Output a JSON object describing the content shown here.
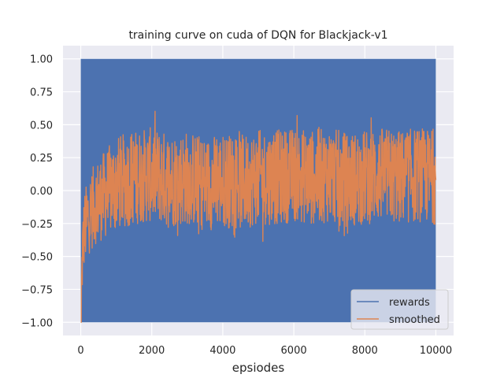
{
  "chart_data": {
    "type": "line",
    "title": "training curve on cuda of DQN for Blackjack-v1",
    "xlabel": "epsiodes",
    "ylabel": "",
    "xlim": [
      -500,
      10500
    ],
    "ylim": [
      -1.1,
      1.1
    ],
    "x_ticks": [
      0,
      2000,
      4000,
      6000,
      8000,
      10000
    ],
    "y_ticks": [
      -1.0,
      -0.75,
      -0.5,
      -0.25,
      0.0,
      0.25,
      0.5,
      0.75,
      1.0
    ],
    "x_tick_labels": [
      "0",
      "2000",
      "4000",
      "6000",
      "8000",
      "10000"
    ],
    "y_tick_labels": [
      "−1.00",
      "−0.75",
      "−0.50",
      "−0.25",
      "0.00",
      "0.25",
      "0.50",
      "0.75",
      "1.00"
    ],
    "grid": true,
    "legend_position": "bottom-right",
    "series": [
      {
        "name": "rewards",
        "color": "#4c72b0",
        "description_values": "episode rewards oscillating between -1 and 1 over 10000 episodes",
        "x_range": [
          0,
          10000
        ],
        "y_range": [
          -1.0,
          1.0
        ]
      },
      {
        "name": "smoothed",
        "color": "#dd8452",
        "x": [
          0,
          50,
          100,
          200,
          400,
          600,
          800,
          1000,
          1500,
          2000,
          2500,
          3000,
          3500,
          4000,
          4500,
          5000,
          5500,
          6000,
          6500,
          7000,
          7500,
          8000,
          8500,
          9000,
          9500,
          10000
        ],
        "values": [
          -1.0,
          -0.45,
          -0.3,
          -0.2,
          -0.1,
          -0.05,
          0.0,
          0.05,
          0.1,
          0.12,
          0.08,
          0.1,
          0.05,
          0.08,
          0.06,
          0.1,
          0.1,
          0.12,
          0.1,
          0.12,
          0.08,
          0.1,
          0.12,
          0.1,
          0.12,
          0.1
        ]
      }
    ]
  },
  "legend": {
    "items": [
      {
        "label": "rewards",
        "color": "#4c72b0"
      },
      {
        "label": "smoothed",
        "color": "#dd8452"
      }
    ]
  }
}
